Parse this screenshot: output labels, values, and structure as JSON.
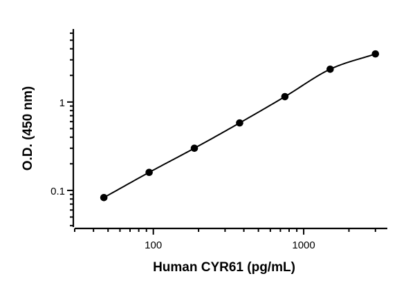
{
  "chart_data": {
    "type": "scatter",
    "title": "",
    "xlabel": "Human CYR61 (pg/mL)",
    "ylabel": "O.D. (450 nm)",
    "x_scale": "log",
    "y_scale": "log",
    "xlim": [
      30,
      3600
    ],
    "ylim": [
      0.0385,
      6.7
    ],
    "x_ticks": [
      {
        "value": 100,
        "label": "100"
      },
      {
        "value": 1000,
        "label": "1000"
      }
    ],
    "y_ticks": [
      {
        "value": 0.1,
        "label": "0.1"
      },
      {
        "value": 1,
        "label": "1"
      }
    ],
    "grid": false,
    "legend": "none",
    "colors": {
      "points": "#000000",
      "curve": "#000000",
      "axis": "#000000"
    },
    "series": [
      {
        "x": [
          46.9,
          93.8,
          187.5,
          375,
          750,
          1500,
          3000
        ],
        "y": [
          0.083,
          0.16,
          0.3,
          0.58,
          1.15,
          2.35,
          3.5
        ],
        "fit": "4PL curve"
      }
    ]
  }
}
